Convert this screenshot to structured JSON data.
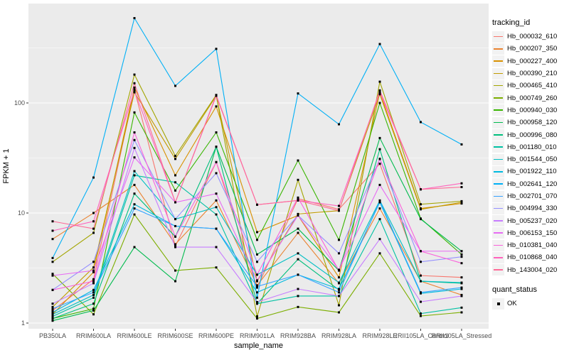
{
  "figure": {
    "background": "#FFFFFF",
    "panel_background": "#EBEBEB",
    "gridline_color": "#FFFFFF",
    "tick_label_color": "#4D4D4D",
    "point_color": "#000000"
  },
  "chart_data": {
    "type": "line",
    "title": "",
    "xlabel": "sample_name",
    "ylabel": "FPKM + 1",
    "y_scale": "log10",
    "y_ticks": [
      1,
      10,
      100
    ],
    "ylim": [
      1,
      720
    ],
    "grid": true,
    "legend_position": "right",
    "point_shape": "filled-square",
    "categories": [
      "PB350LA",
      "RRIM600LA",
      "RRIM600LE",
      "RRIM600SE",
      "RRIM600PE",
      "RRIM901LA",
      "RRIM928BA",
      "RRIM928LA",
      "RRIM928LE",
      "RRII105LA_Control",
      "RRII105LA_Stressed"
    ],
    "series": [
      {
        "name": "Hb_000032_610",
        "color": "#F8766D",
        "values": [
          1.3,
          2.5,
          132,
          5.0,
          29,
          2.1,
          13.5,
          10.8,
          28,
          2.7,
          2.6
        ]
      },
      {
        "name": "Hb_000207_350",
        "color": "#EA8331",
        "values": [
          5.8,
          10,
          18,
          5.2,
          13,
          2.2,
          6.6,
          2.3,
          11,
          2.4,
          1.8
        ]
      },
      {
        "name": "Hb_000227_400",
        "color": "#D89000",
        "values": [
          1.2,
          2.9,
          138,
          22,
          93,
          6.7,
          9.5,
          2.6,
          125,
          11,
          12.2
        ]
      },
      {
        "name": "Hb_000390_210",
        "color": "#C09B00",
        "values": [
          1.4,
          3.2,
          125,
          31,
          116,
          2.4,
          9.8,
          10.5,
          120,
          10.8,
          12.5
        ]
      },
      {
        "name": "Hb_000465_410",
        "color": "#A3A500",
        "values": [
          3.6,
          6.6,
          181,
          33,
          118,
          1.15,
          20,
          1.45,
          156,
          12,
          12.8
        ]
      },
      {
        "name": "Hb_000749_260",
        "color": "#7CAE00",
        "values": [
          2.8,
          1.2,
          9.7,
          3.0,
          3.2,
          1.1,
          1.4,
          1.25,
          4.3,
          1.16,
          1.25
        ]
      },
      {
        "name": "Hb_000940_030",
        "color": "#39B600",
        "values": [
          1.1,
          1.35,
          82,
          16,
          54,
          5.7,
          30,
          5.7,
          100,
          8.9,
          4.2
        ]
      },
      {
        "name": "Hb_000958_120",
        "color": "#00BB4E",
        "values": [
          1.05,
          1.3,
          4.9,
          2.4,
          40,
          4.2,
          7.2,
          3.0,
          48,
          8.8,
          4.5
        ]
      },
      {
        "name": "Hb_000996_080",
        "color": "#00BF7D",
        "values": [
          1.1,
          1.5,
          15,
          6.1,
          40,
          1.5,
          3.8,
          2.0,
          38,
          2.4,
          2.3
        ]
      },
      {
        "name": "Hb_001180_010",
        "color": "#00C1A3",
        "values": [
          1.15,
          1.7,
          22,
          19,
          9.7,
          1.5,
          1.76,
          1.76,
          8.8,
          1.22,
          1.38
        ]
      },
      {
        "name": "Hb_001544_050",
        "color": "#00BFC4",
        "values": [
          1.2,
          1.8,
          24,
          8.8,
          11.3,
          2.75,
          4.3,
          2.33,
          13,
          2.4,
          2.33
        ]
      },
      {
        "name": "Hb_001922_110",
        "color": "#00BAE0",
        "values": [
          1.25,
          2.0,
          12,
          7.6,
          7.2,
          1.9,
          2.75,
          2.04,
          12.5,
          1.86,
          2.04
        ]
      },
      {
        "name": "Hb_002641_120",
        "color": "#00B0F6",
        "values": [
          3.9,
          21,
          590,
          143,
          310,
          1.7,
          122,
          64,
          343,
          67,
          42
        ]
      },
      {
        "name": "Hb_002701_070",
        "color": "#35A2FF",
        "values": [
          1.35,
          1.9,
          11,
          7.6,
          7.2,
          2.15,
          2.75,
          1.9,
          12.8,
          1.9,
          2.1
        ]
      },
      {
        "name": "Hb_004994_330",
        "color": "#9590FF",
        "values": [
          2.0,
          3.6,
          46,
          8.8,
          23,
          3.6,
          9.5,
          4.3,
          31,
          3.6,
          4.0
        ]
      },
      {
        "name": "Hb_005237_020",
        "color": "#C77CFF",
        "values": [
          1.5,
          2.3,
          39,
          4.9,
          4.9,
          1.55,
          2.04,
          1.76,
          5.8,
          1.56,
          1.76
        ]
      },
      {
        "name": "Hb_006153_150",
        "color": "#E76BF3",
        "values": [
          2.7,
          3.0,
          32,
          12.5,
          15,
          2.44,
          9.5,
          3.05,
          18,
          4.5,
          4.5
        ]
      },
      {
        "name": "Hb_010381_040",
        "color": "#FA62DB",
        "values": [
          2.0,
          2.4,
          54,
          6.1,
          29,
          2.75,
          13.8,
          3.0,
          31,
          4.5,
          3.5
        ]
      },
      {
        "name": "Hb_010868_040",
        "color": "#FF62BC",
        "values": [
          6.9,
          8.4,
          130,
          12.5,
          118,
          11.9,
          13.0,
          11.6,
          125,
          16.4,
          18.6
        ]
      },
      {
        "name": "Hb_143004_020",
        "color": "#FF6A98",
        "values": [
          8.4,
          7.2,
          151,
          12.5,
          116,
          11.9,
          13.0,
          10.5,
          130,
          16.4,
          17.2
        ]
      }
    ]
  },
  "legend": {
    "tracking_title": "tracking_id",
    "quant_title": "quant_status",
    "quant_items": [
      {
        "label": "OK",
        "marker": "black-square"
      }
    ]
  }
}
